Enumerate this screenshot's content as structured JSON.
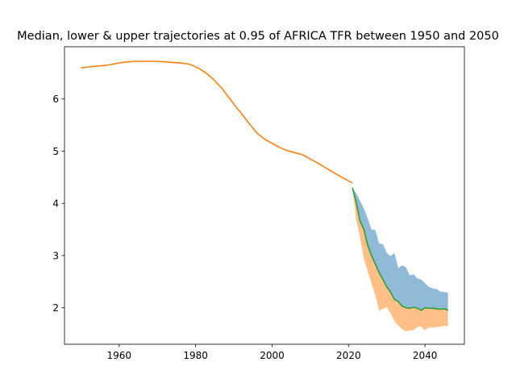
{
  "chart_data": {
    "type": "area",
    "title": "Median, lower & upper trajectories at 0.95 of AFRICA TFR between 1950 and 2050",
    "xlabel": "",
    "ylabel": "",
    "xlim": [
      1945.7,
      2050.3
    ],
    "ylim": [
      1.3,
      7.0
    ],
    "xticks": [
      1960,
      1980,
      2000,
      2020,
      2040
    ],
    "yticks": [
      2,
      3,
      4,
      5,
      6
    ],
    "grid": false,
    "legend": "none",
    "colors": {
      "history": "#ff7f0e",
      "median": "#2ca02c",
      "upper_band": "#1f77b4",
      "lower_band": "#ff7f0e"
    },
    "series": [
      {
        "role": "history",
        "x": [
          1950,
          1952,
          1954,
          1956,
          1958,
          1960,
          1962,
          1964,
          1966,
          1968,
          1970,
          1972,
          1974,
          1976,
          1978,
          1979,
          1981,
          1983,
          1985,
          1987,
          1989,
          1990,
          1992,
          1994,
          1996,
          1998,
          2000,
          2002,
          2004,
          2006,
          2008,
          2010,
          2012,
          2014,
          2015,
          2017,
          2019,
          2021
        ],
        "values": [
          6.6,
          6.61,
          6.63,
          6.64,
          6.66,
          6.69,
          6.71,
          6.72,
          6.72,
          6.72,
          6.72,
          6.71,
          6.7,
          6.69,
          6.67,
          6.65,
          6.58,
          6.48,
          6.35,
          6.19,
          6.0,
          5.9,
          5.72,
          5.53,
          5.35,
          5.23,
          5.15,
          5.07,
          5.01,
          4.97,
          4.93,
          4.85,
          4.77,
          4.68,
          4.64,
          4.55,
          4.47,
          4.39
        ]
      },
      {
        "role": "median",
        "x": [
          2021,
          2022,
          2023,
          2024,
          2025,
          2026,
          2027,
          2028,
          2029,
          2030,
          2031,
          2032,
          2033,
          2034,
          2035,
          2036,
          2037,
          2038,
          2039,
          2040,
          2041,
          2042,
          2043,
          2044,
          2045,
          2046
        ],
        "values": [
          4.3,
          4.02,
          3.66,
          3.5,
          3.2,
          3.0,
          2.84,
          2.67,
          2.54,
          2.4,
          2.3,
          2.16,
          2.12,
          2.03,
          2.0,
          1.99,
          2.01,
          1.99,
          1.95,
          2.0,
          1.99,
          1.99,
          1.98,
          1.97,
          1.98,
          1.95
        ]
      },
      {
        "role": "upper",
        "x": [
          2021,
          2022,
          2023,
          2024,
          2025,
          2026,
          2027,
          2028,
          2029,
          2030,
          2031,
          2032,
          2033,
          2034,
          2035,
          2036,
          2037,
          2038,
          2039,
          2040,
          2041,
          2042,
          2043,
          2044,
          2045,
          2046
        ],
        "values": [
          4.3,
          4.19,
          4.05,
          3.9,
          3.71,
          3.5,
          3.49,
          3.23,
          3.22,
          3.05,
          2.99,
          3.05,
          2.76,
          2.81,
          2.78,
          2.62,
          2.64,
          2.56,
          2.54,
          2.47,
          2.4,
          2.37,
          2.36,
          2.31,
          2.3,
          2.29
        ]
      },
      {
        "role": "lower",
        "x": [
          2021,
          2022,
          2023,
          2024,
          2025,
          2026,
          2027,
          2028,
          2029,
          2030,
          2031,
          2032,
          2033,
          2034,
          2035,
          2036,
          2037,
          2038,
          2039,
          2040,
          2041,
          2042,
          2043,
          2044,
          2045,
          2046
        ],
        "values": [
          4.3,
          3.69,
          3.35,
          2.94,
          2.7,
          2.47,
          2.24,
          1.94,
          1.98,
          2.01,
          1.89,
          1.75,
          1.66,
          1.59,
          1.55,
          1.56,
          1.57,
          1.63,
          1.64,
          1.57,
          1.62,
          1.62,
          1.63,
          1.63,
          1.66,
          1.64
        ]
      }
    ]
  }
}
